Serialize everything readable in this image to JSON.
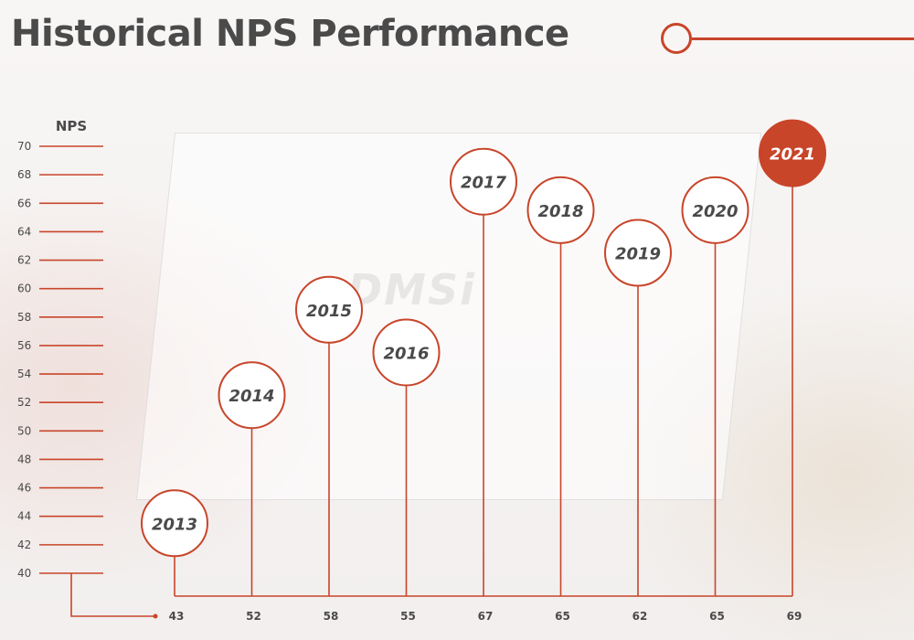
{
  "title": "Historical NPS Performance",
  "watermark": "DMSi",
  "colors": {
    "accent": "#c8452a",
    "text": "#4a4a4a",
    "circle_fill": "#ffffff",
    "highlight_fill": "#c8452a"
  },
  "chart_data": {
    "type": "lollipop",
    "ylabel": "NPS",
    "ylim": [
      40,
      70
    ],
    "yticks": [
      70,
      68,
      66,
      64,
      62,
      60,
      58,
      56,
      54,
      52,
      50,
      48,
      46,
      44,
      42,
      40
    ],
    "categories": [
      "2013",
      "2014",
      "2015",
      "2016",
      "2017",
      "2018",
      "2019",
      "2020",
      "2021"
    ],
    "values": [
      43,
      52,
      58,
      55,
      67,
      65,
      62,
      65,
      69
    ],
    "value_labels": [
      "43",
      "52",
      "58",
      "55",
      "67",
      "65",
      "62",
      "65",
      "69"
    ],
    "highlight": "2021"
  }
}
